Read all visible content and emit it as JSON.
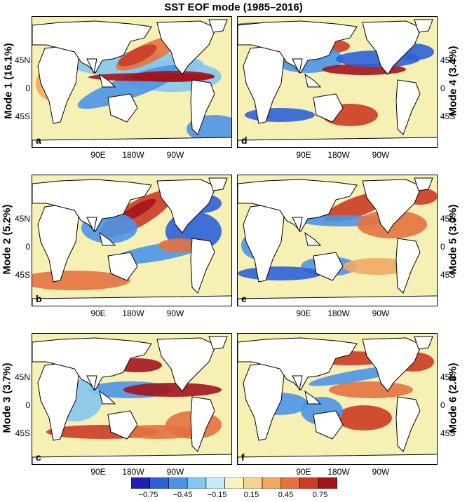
{
  "title": "SST EOF mode (1985–2016)",
  "lat_labels": [
    "45N",
    "0",
    "45S"
  ],
  "lon_labels": [
    "90E",
    "180W",
    "90W"
  ],
  "panels": [
    {
      "letter": "a",
      "mode_label": "Mode 1 (16.1%)"
    },
    {
      "letter": "b",
      "mode_label": "Mode 2 (5.2%)"
    },
    {
      "letter": "c",
      "mode_label": "Mode 3 (3.7%)"
    },
    {
      "letter": "d",
      "mode_label": "Mode 4 (3.4%)"
    },
    {
      "letter": "e",
      "mode_label": "Mode 5 (3.0%)"
    },
    {
      "letter": "f",
      "mode_label": "Mode 6 (2.8%)"
    }
  ],
  "colorbar": {
    "colors": [
      "#1f1fb4",
      "#2e61d8",
      "#4c93e6",
      "#86c6ef",
      "#c6ebf5",
      "#f6f3c0",
      "#f7d391",
      "#f3a864",
      "#e4723f",
      "#cc3b26",
      "#a4141c"
    ],
    "tick_labels": [
      "−0.75",
      "−0.45",
      "−0.15",
      "0.15",
      "0.45",
      "0.75"
    ],
    "range": [
      -0.9,
      0.9
    ]
  }
}
